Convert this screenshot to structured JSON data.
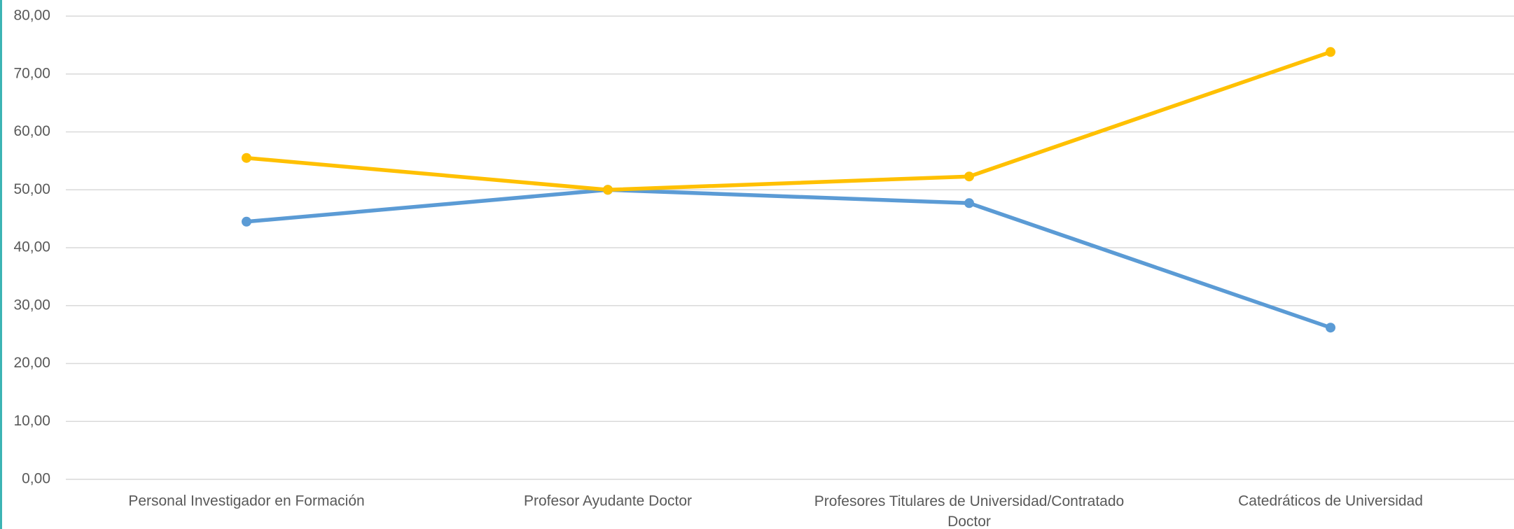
{
  "chart_data": {
    "type": "line",
    "categories": [
      "Personal Investigador en Formación",
      "Profesor Ayudante Doctor",
      "Profesores Titulares de Universidad/Contratado Doctor",
      "Catedráticos de Universidad"
    ],
    "series": [
      {
        "color": "#5b9bd5",
        "values": [
          44.5,
          50.0,
          47.7,
          26.2
        ]
      },
      {
        "color": "#ffc000",
        "values": [
          55.5,
          50.0,
          52.3,
          73.8
        ]
      }
    ],
    "ylim": [
      0,
      80
    ],
    "yticks": [
      {
        "value": 0,
        "label": "0,00"
      },
      {
        "value": 10,
        "label": "10,00"
      },
      {
        "value": 20,
        "label": "20,00"
      },
      {
        "value": 30,
        "label": "30,00"
      },
      {
        "value": 40,
        "label": "40,00"
      },
      {
        "value": 50,
        "label": "50,00"
      },
      {
        "value": 60,
        "label": "60,00"
      },
      {
        "value": 70,
        "label": "70,00"
      },
      {
        "value": 80,
        "label": "80,00"
      }
    ],
    "grid": true
  }
}
